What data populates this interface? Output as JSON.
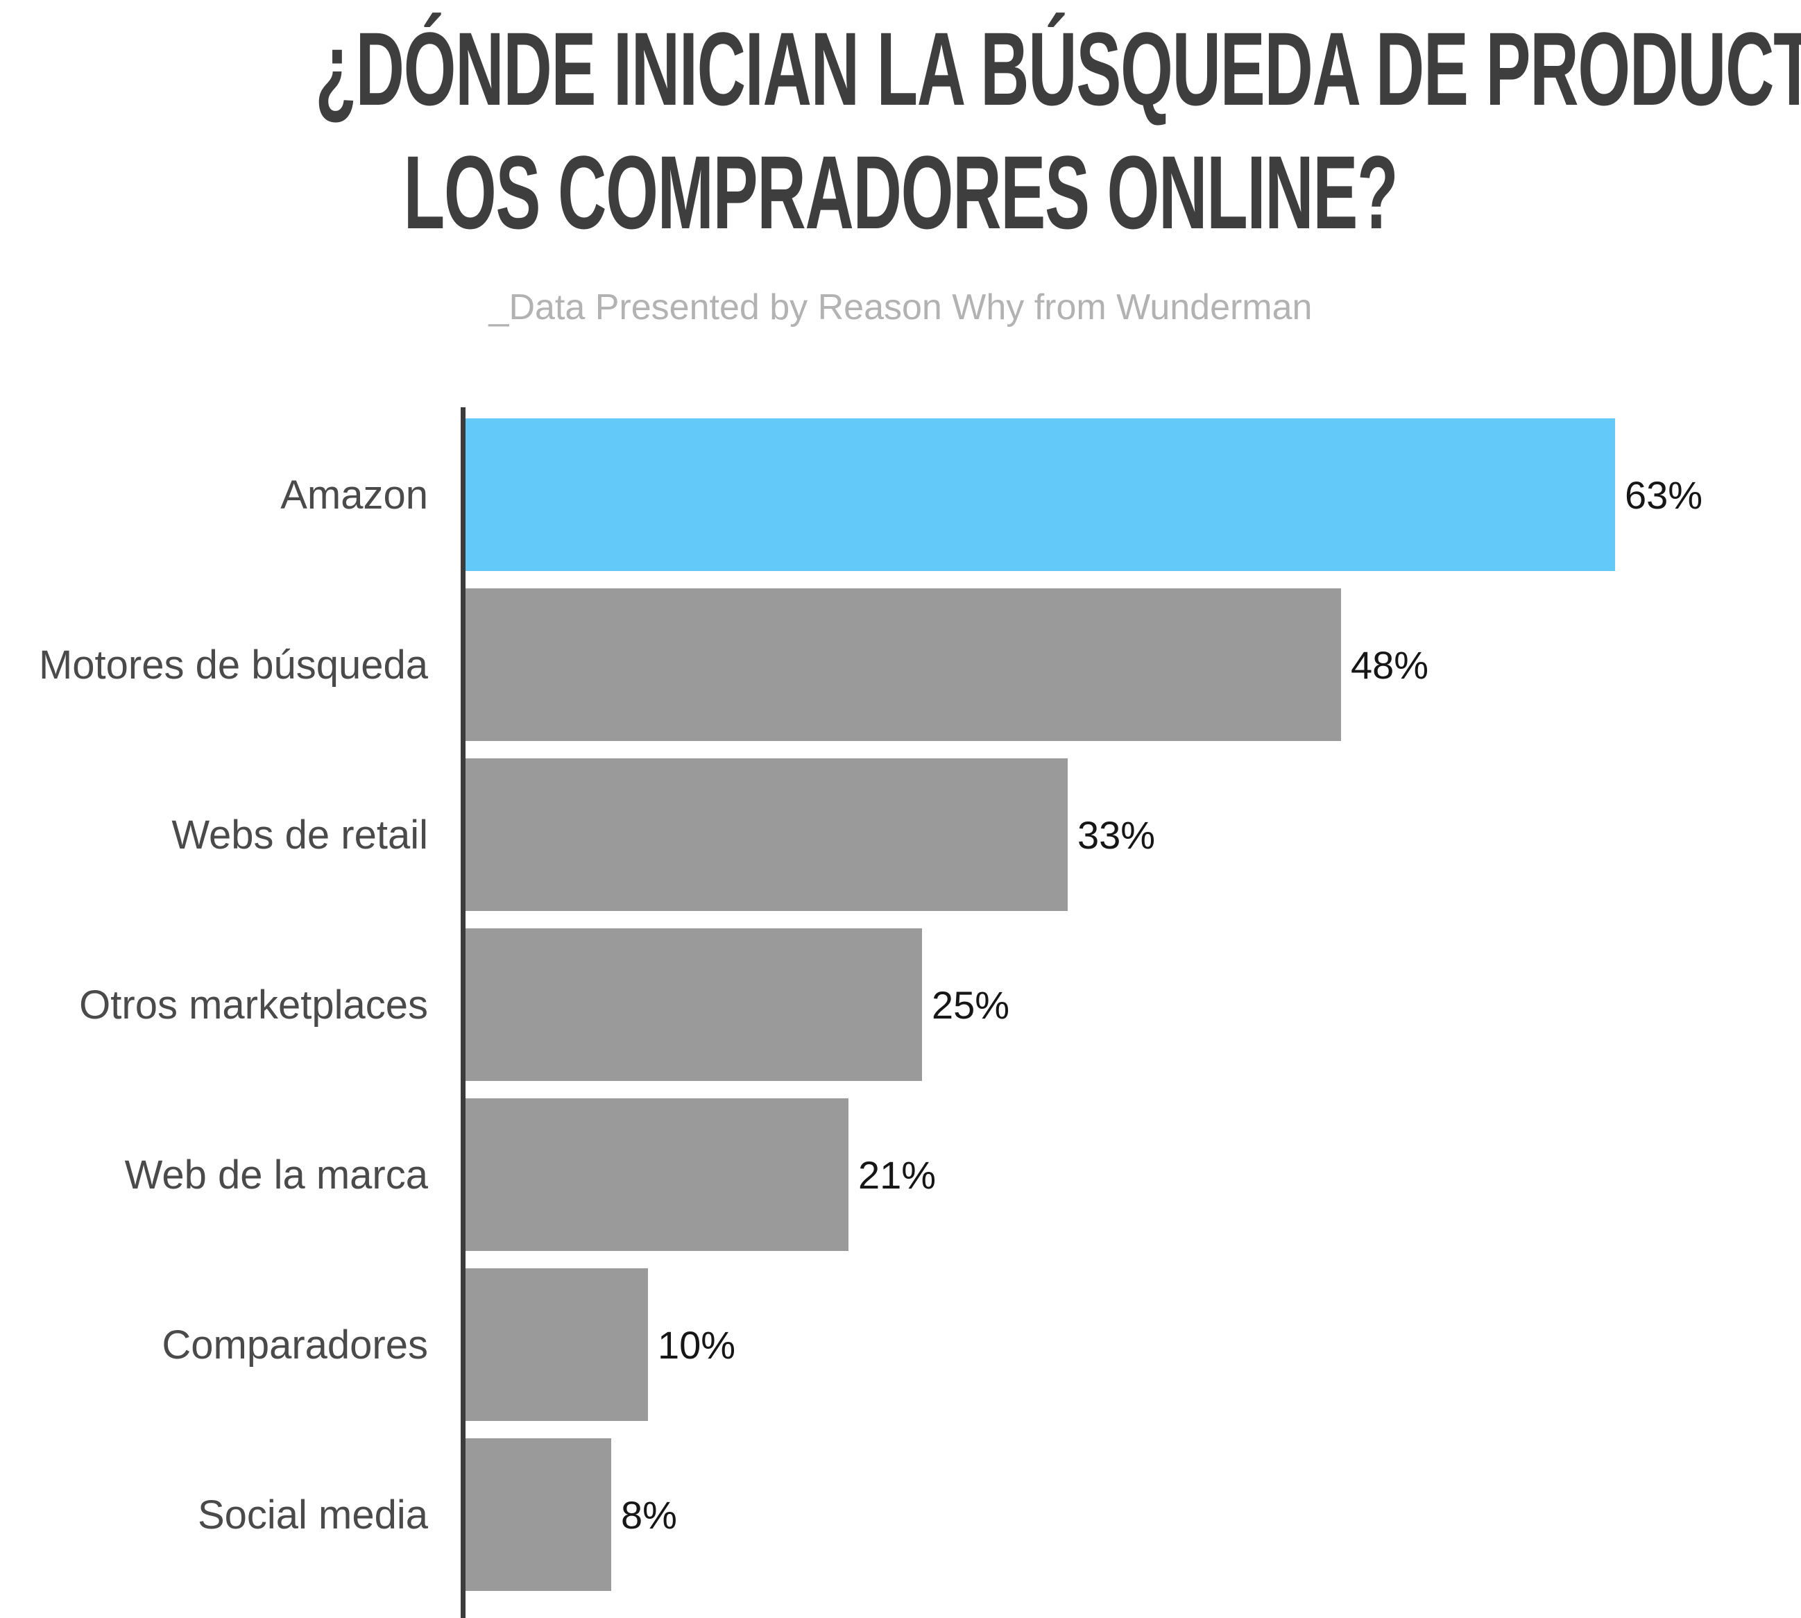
{
  "title": {
    "line1": "¿DÓNDE INICIAN LA BÚSQUEDA DE PRODUCTOS",
    "line2": "LOS COMPRADORES ONLINE?"
  },
  "subtitle": "_Data Presented by Reason Why from Wunderman",
  "chart_data": {
    "type": "bar",
    "orientation": "horizontal",
    "title": "¿Dónde inician la búsqueda de productos los compradores online?",
    "subtitle": "_Data Presented by Reason Why from Wunderman",
    "categories": [
      "Amazon",
      "Motores de búsqueda",
      "Webs de retail",
      "Otros marketplaces",
      "Web de la marca",
      "Comparadores",
      "Social media"
    ],
    "values": [
      63,
      48,
      33,
      25,
      21,
      10,
      8
    ],
    "value_labels": [
      "63%",
      "48%",
      "33%",
      "25%",
      "21%",
      "10%",
      "8%"
    ],
    "unit": "%",
    "xlim": [
      0,
      73
    ],
    "grid": false,
    "legend": false,
    "highlight_index": 0,
    "highlight_category": "Amazon",
    "colors": {
      "bar_default": "#9A9A9A",
      "bar_highlight": "#63C9F9",
      "axis": "#3C3C3C",
      "title": "#3E3E3E",
      "subtitle": "#B2B2B2",
      "category_label": "#4A4A4A",
      "value_label": "#161616",
      "background": "#FFFFFF"
    }
  }
}
